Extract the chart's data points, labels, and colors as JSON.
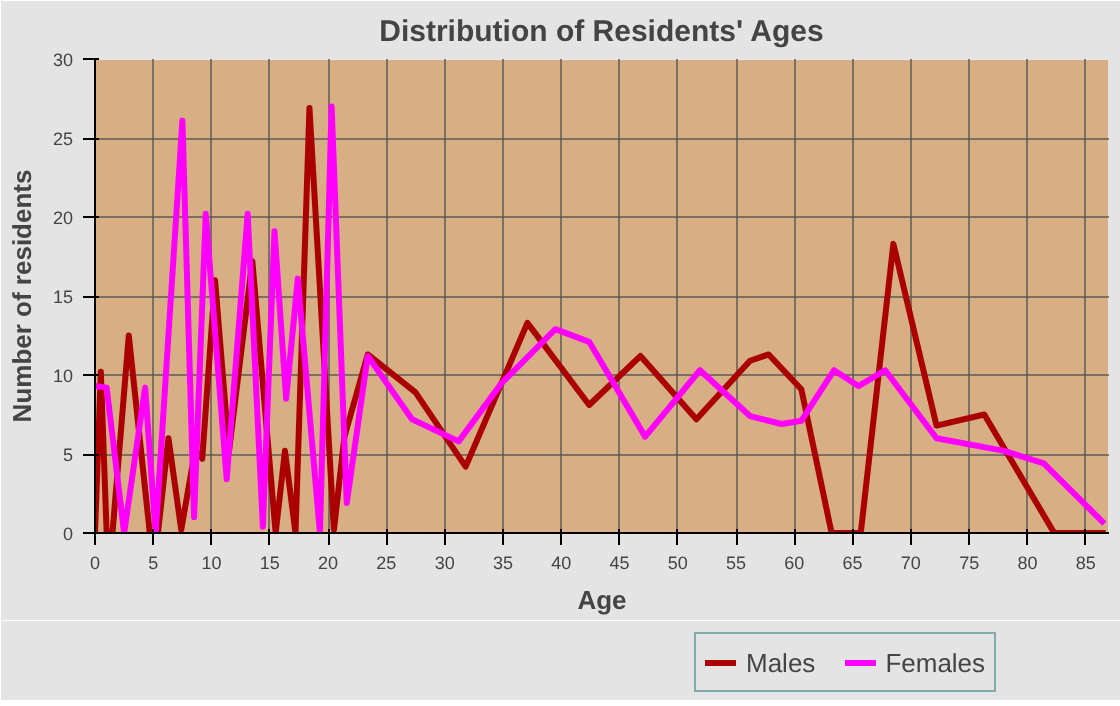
{
  "chart_data": {
    "type": "line",
    "title": "Distribution of Residents' Ages",
    "xlabel": "Age",
    "ylabel": "Number of residents",
    "xlim": [
      0,
      87
    ],
    "ylim": [
      0,
      30
    ],
    "xticks": [
      0,
      5,
      10,
      15,
      20,
      25,
      30,
      35,
      40,
      45,
      50,
      55,
      60,
      65,
      70,
      75,
      80,
      85
    ],
    "yticks": [
      0,
      5,
      10,
      15,
      20,
      25,
      30
    ],
    "grid": true,
    "legend": "bottom right",
    "line_style": "solid",
    "marker": "none",
    "series": [
      {
        "name": "Males",
        "color": "#aa0000",
        "x": [
          0,
          0.5,
          1,
          1.5,
          2.9,
          4.7,
          5.4,
          6.3,
          7.4,
          8.6,
          9.2,
          10.3,
          11.5,
          13.5,
          15.5,
          16.3,
          17.2,
          18.4,
          20.5,
          21.4,
          23.4,
          27.5,
          31.8,
          37.1,
          42.4,
          46.8,
          51.6,
          56.2,
          57.8,
          60.6,
          63.2,
          65.7,
          68.5,
          72.2,
          76.3,
          82.3,
          86.7
        ],
        "values": [
          0,
          10.2,
          0,
          0,
          12.5,
          0,
          0,
          6,
          0.2,
          5.3,
          4.7,
          16,
          5.2,
          17.2,
          0,
          5.2,
          0,
          26.9,
          0.2,
          6.1,
          11.3,
          8.9,
          4.2,
          13.3,
          8.1,
          11.2,
          7.2,
          10.9,
          11.3,
          9.1,
          0,
          0,
          18.3,
          6.8,
          7.5,
          0,
          0
        ]
      },
      {
        "name": "Females",
        "color": "#ff00ff",
        "x": [
          0,
          1,
          2.5,
          4.3,
          5.2,
          7.5,
          8.5,
          9.5,
          11.3,
          13.1,
          14.4,
          15.4,
          16.4,
          17.4,
          19.3,
          20.3,
          21.6,
          23.4,
          27.2,
          31.2,
          34.9,
          39.5,
          42.4,
          47.2,
          51.9,
          56.2,
          58.9,
          60.6,
          63.4,
          65.5,
          67.8,
          72.2,
          78,
          81.4,
          86.6
        ],
        "values": [
          9.3,
          9.2,
          0,
          9.2,
          0,
          26.1,
          1,
          20.2,
          3.4,
          20.2,
          0.4,
          19.1,
          8.5,
          16.1,
          0,
          27,
          1.9,
          11.2,
          7.2,
          5.8,
          9.5,
          12.9,
          12.1,
          6.1,
          10.3,
          7.4,
          6.9,
          7.1,
          10.3,
          9.3,
          10.3,
          6,
          5.2,
          4.4,
          0.6
        ]
      }
    ]
  }
}
